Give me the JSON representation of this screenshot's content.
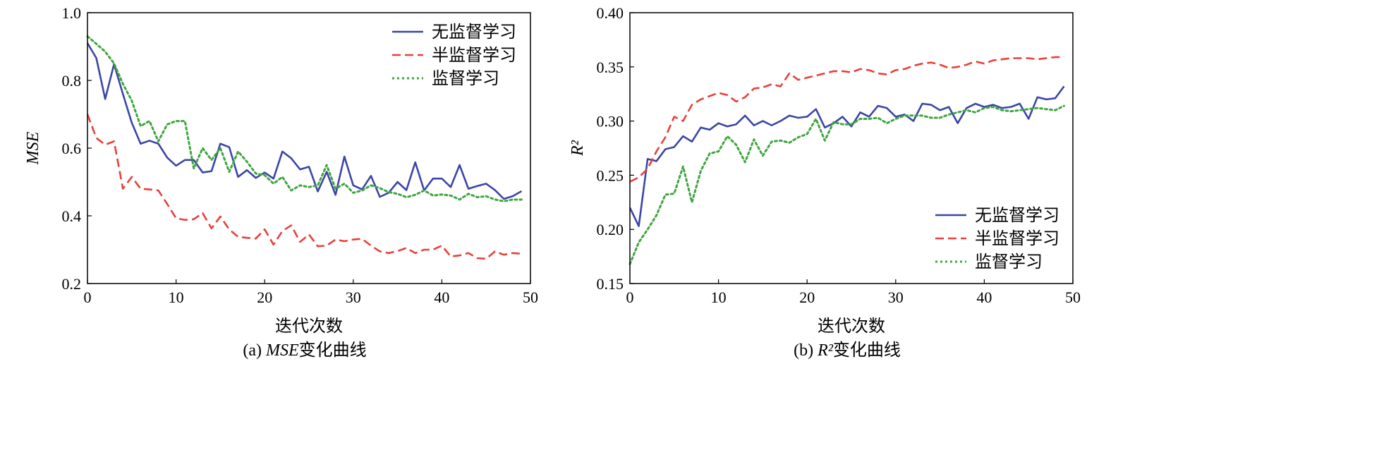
{
  "chart_data": [
    {
      "type": "line",
      "caption_prefix": "(a) ",
      "caption_var": "MSE",
      "caption_suffix": "变化曲线",
      "xlabel": "迭代次数",
      "ylabel": "MSE",
      "xlim": [
        0,
        50
      ],
      "ylim": [
        0.2,
        1.0
      ],
      "xticks": [
        "0",
        "10",
        "20",
        "30",
        "40",
        "50"
      ],
      "yticks": [
        "0.2",
        "0.4",
        "0.6",
        "0.8",
        "1.0"
      ],
      "legend_position": "top-right",
      "series": [
        {
          "name": "无监督学习",
          "color": "#3a46a6",
          "style": "solid",
          "values": [
            0.91,
            0.866,
            0.745,
            0.848,
            0.76,
            0.675,
            0.613,
            0.622,
            0.613,
            0.572,
            0.548,
            0.565,
            0.565,
            0.528,
            0.532,
            0.613,
            0.603,
            0.515,
            0.535,
            0.512,
            0.528,
            0.51,
            0.59,
            0.57,
            0.537,
            0.545,
            0.472,
            0.53,
            0.462,
            0.575,
            0.49,
            0.478,
            0.518,
            0.456,
            0.468,
            0.5,
            0.476,
            0.558,
            0.475,
            0.51,
            0.51,
            0.485,
            0.55,
            0.48,
            0.488,
            0.495,
            0.476,
            0.45,
            0.458,
            0.473
          ]
        },
        {
          "name": "半监督学习",
          "color": "#e8403a",
          "style": "dashed",
          "values": [
            0.7,
            0.63,
            0.61,
            0.62,
            0.48,
            0.515,
            0.48,
            0.478,
            0.475,
            0.435,
            0.393,
            0.388,
            0.39,
            0.408,
            0.363,
            0.398,
            0.36,
            0.338,
            0.335,
            0.333,
            0.36,
            0.315,
            0.355,
            0.372,
            0.323,
            0.345,
            0.31,
            0.312,
            0.33,
            0.325,
            0.33,
            0.332,
            0.312,
            0.295,
            0.29,
            0.296,
            0.305,
            0.29,
            0.3,
            0.3,
            0.312,
            0.28,
            0.283,
            0.29,
            0.275,
            0.273,
            0.295,
            0.285,
            0.29,
            0.288
          ]
        },
        {
          "name": "监督学习",
          "color": "#3fa63f",
          "style": "dotted",
          "values": [
            0.93,
            0.908,
            0.885,
            0.85,
            0.79,
            0.74,
            0.665,
            0.68,
            0.62,
            0.67,
            0.68,
            0.68,
            0.54,
            0.6,
            0.565,
            0.6,
            0.53,
            0.59,
            0.56,
            0.525,
            0.52,
            0.495,
            0.515,
            0.475,
            0.49,
            0.485,
            0.49,
            0.55,
            0.48,
            0.495,
            0.468,
            0.475,
            0.49,
            0.482,
            0.47,
            0.465,
            0.455,
            0.462,
            0.475,
            0.46,
            0.463,
            0.46,
            0.448,
            0.465,
            0.455,
            0.458,
            0.448,
            0.443,
            0.448,
            0.448
          ]
        }
      ]
    },
    {
      "type": "line",
      "caption_prefix": "(b) ",
      "caption_var": "R²",
      "caption_suffix": "变化曲线",
      "xlabel": "迭代次数",
      "ylabel": "R²",
      "xlim": [
        0,
        50
      ],
      "ylim": [
        0.15,
        0.4
      ],
      "xticks": [
        "0",
        "10",
        "20",
        "30",
        "40",
        "50"
      ],
      "yticks": [
        "0.15",
        "0.20",
        "0.25",
        "0.30",
        "0.35",
        "0.40"
      ],
      "legend_position": "bottom-right",
      "series": [
        {
          "name": "无监督学习",
          "color": "#3a46a6",
          "style": "solid",
          "values": [
            0.22,
            0.203,
            0.265,
            0.263,
            0.274,
            0.276,
            0.286,
            0.281,
            0.294,
            0.292,
            0.298,
            0.295,
            0.297,
            0.305,
            0.296,
            0.3,
            0.296,
            0.3,
            0.305,
            0.303,
            0.304,
            0.311,
            0.294,
            0.298,
            0.304,
            0.295,
            0.308,
            0.304,
            0.314,
            0.312,
            0.304,
            0.306,
            0.3,
            0.316,
            0.315,
            0.31,
            0.313,
            0.298,
            0.312,
            0.316,
            0.313,
            0.315,
            0.312,
            0.313,
            0.316,
            0.302,
            0.322,
            0.32,
            0.321,
            0.332
          ]
        },
        {
          "name": "半监督学习",
          "color": "#e8403a",
          "style": "dashed",
          "values": [
            0.244,
            0.248,
            0.256,
            0.272,
            0.285,
            0.304,
            0.3,
            0.315,
            0.32,
            0.323,
            0.326,
            0.324,
            0.318,
            0.322,
            0.33,
            0.331,
            0.334,
            0.332,
            0.344,
            0.338,
            0.34,
            0.342,
            0.344,
            0.346,
            0.346,
            0.345,
            0.348,
            0.347,
            0.344,
            0.343,
            0.347,
            0.348,
            0.351,
            0.353,
            0.354,
            0.352,
            0.349,
            0.35,
            0.352,
            0.355,
            0.353,
            0.356,
            0.357,
            0.358,
            0.358,
            0.358,
            0.357,
            0.358,
            0.359,
            0.359
          ]
        },
        {
          "name": "监督学习",
          "color": "#3fa63f",
          "style": "dotted",
          "values": [
            0.168,
            0.188,
            0.2,
            0.213,
            0.232,
            0.233,
            0.258,
            0.225,
            0.254,
            0.27,
            0.272,
            0.286,
            0.278,
            0.262,
            0.283,
            0.268,
            0.281,
            0.282,
            0.28,
            0.285,
            0.288,
            0.302,
            0.282,
            0.299,
            0.297,
            0.297,
            0.302,
            0.302,
            0.303,
            0.298,
            0.302,
            0.305,
            0.305,
            0.305,
            0.303,
            0.303,
            0.306,
            0.308,
            0.31,
            0.308,
            0.312,
            0.313,
            0.31,
            0.309,
            0.31,
            0.311,
            0.312,
            0.311,
            0.31,
            0.314
          ]
        }
      ]
    }
  ]
}
